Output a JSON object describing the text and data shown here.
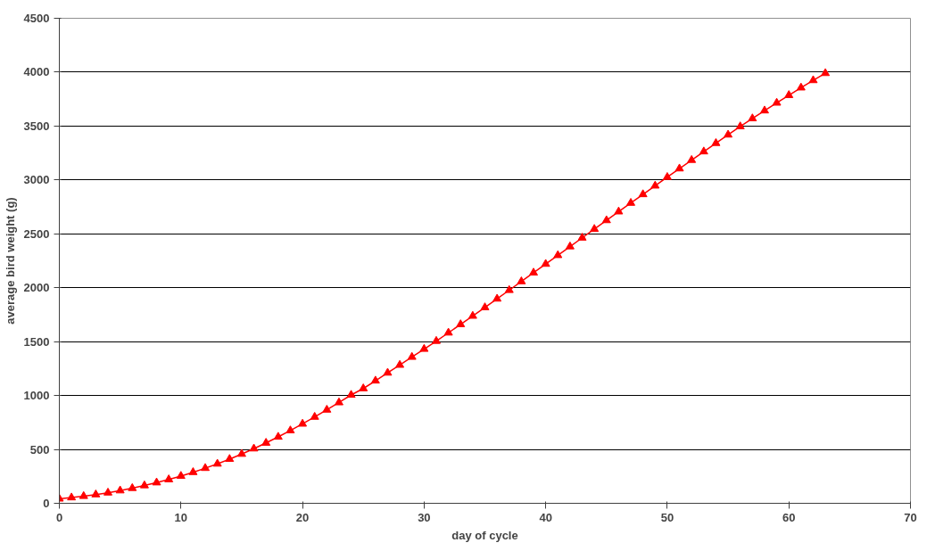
{
  "chart_data": {
    "type": "line",
    "xlabel": "day of cycle",
    "ylabel": "average bird weight (g)",
    "x": [
      0,
      1,
      2,
      3,
      4,
      5,
      6,
      7,
      8,
      9,
      10,
      11,
      12,
      13,
      14,
      15,
      16,
      17,
      18,
      19,
      20,
      21,
      22,
      23,
      24,
      25,
      26,
      27,
      28,
      29,
      30,
      31,
      32,
      33,
      34,
      35,
      36,
      37,
      38,
      39,
      40,
      41,
      42,
      43,
      44,
      45,
      46,
      47,
      48,
      49,
      50,
      51,
      52,
      53,
      54,
      55,
      56,
      57,
      58,
      59,
      60,
      61,
      62,
      63
    ],
    "series": [
      {
        "color": "#ff0000",
        "values": [
          42,
          53,
          66,
          81,
          98,
          118,
          140,
          165,
          192,
          221,
          253,
          288,
          326,
          366,
          410,
          457,
          507,
          560,
          616,
          675,
          737,
          801,
          867,
          935,
          1005,
          1065,
          1137,
          1210,
          1283,
          1357,
          1431,
          1505,
          1582,
          1660,
          1738,
          1817,
          1897,
          1977,
          2058,
          2139,
          2220,
          2301,
          2382,
          2463,
          2544,
          2625,
          2706,
          2786,
          2866,
          2946,
          3026,
          3105,
          3184,
          3263,
          3341,
          3419,
          3496,
          3570,
          3643,
          3715,
          3786,
          3856,
          3924,
          3990
        ]
      }
    ],
    "xlim": [
      0,
      70
    ],
    "xticks": [
      0,
      10,
      20,
      30,
      40,
      50,
      60,
      70
    ],
    "ylim": [
      0,
      4500
    ],
    "yticks": [
      0,
      500,
      1000,
      1500,
      2000,
      2500,
      3000,
      3500,
      4000,
      4500
    ],
    "grid": "y",
    "marker": "triangle",
    "line_style": "solid"
  }
}
